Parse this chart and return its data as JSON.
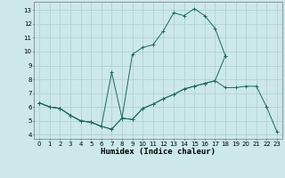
{
  "title": "",
  "xlabel": "Humidex (Indice chaleur)",
  "ylabel": "",
  "background_color": "#cce8e8",
  "grid_color": "#aacece",
  "line_color": "#1a6a5a",
  "xlim": [
    -0.5,
    23.5
  ],
  "ylim": [
    3.7,
    13.6
  ],
  "xticks": [
    0,
    1,
    2,
    3,
    4,
    5,
    6,
    7,
    8,
    9,
    10,
    11,
    12,
    13,
    14,
    15,
    16,
    17,
    18,
    19,
    20,
    21,
    22,
    23
  ],
  "yticks": [
    4,
    5,
    6,
    7,
    8,
    9,
    10,
    11,
    12,
    13
  ],
  "line1_x": [
    0,
    1,
    2,
    3,
    4,
    5,
    6,
    7,
    8,
    9,
    10,
    11,
    12,
    13,
    14,
    15,
    16,
    17,
    18,
    19,
    20,
    21,
    22,
    23
  ],
  "line1_y": [
    6.3,
    6.0,
    5.9,
    5.4,
    5.0,
    4.9,
    4.6,
    4.4,
    5.2,
    5.1,
    5.9,
    6.2,
    6.6,
    6.9,
    7.3,
    7.5,
    7.7,
    7.9,
    7.4,
    7.4,
    7.5,
    7.5,
    6.0,
    4.2
  ],
  "line2_x": [
    0,
    1,
    2,
    3,
    4,
    5,
    6,
    7,
    8,
    9,
    10,
    11,
    12,
    13,
    14,
    15,
    16,
    17,
    18
  ],
  "line2_y": [
    6.3,
    6.0,
    5.9,
    5.4,
    5.0,
    4.9,
    4.6,
    8.5,
    5.2,
    9.8,
    10.3,
    10.5,
    11.5,
    12.8,
    12.6,
    13.1,
    12.6,
    11.7,
    9.7
  ],
  "line3_x": [
    0,
    1,
    2,
    3,
    4,
    5,
    6,
    7,
    8,
    9,
    10,
    11,
    12,
    13,
    14,
    15,
    16,
    17,
    18
  ],
  "line3_y": [
    6.3,
    6.0,
    5.9,
    5.4,
    5.0,
    4.9,
    4.6,
    4.4,
    5.2,
    5.1,
    5.9,
    6.2,
    6.6,
    6.9,
    7.3,
    7.5,
    7.7,
    7.9,
    9.7
  ]
}
